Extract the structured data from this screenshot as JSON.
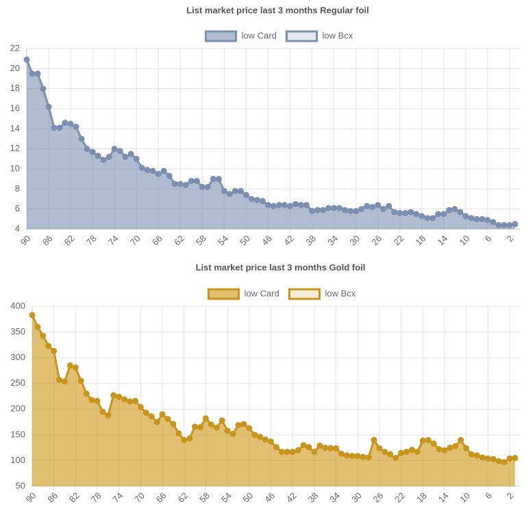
{
  "chart_data": [
    {
      "type": "line",
      "title": "List market price last 3 months Regular foil",
      "fill": true,
      "grid": true,
      "x": [
        90,
        89,
        88,
        87,
        86,
        85,
        84,
        83,
        82,
        81,
        80,
        79,
        78,
        77,
        76,
        75,
        74,
        73,
        72,
        71,
        70,
        69,
        68,
        67,
        66,
        65,
        64,
        63,
        62,
        61,
        60,
        59,
        58,
        57,
        56,
        55,
        54,
        53,
        52,
        51,
        50,
        49,
        48,
        47,
        46,
        45,
        44,
        43,
        42,
        41,
        40,
        39,
        38,
        37,
        36,
        35,
        34,
        33,
        32,
        31,
        30,
        29,
        28,
        27,
        26,
        25,
        24,
        23,
        22,
        21,
        20,
        19,
        18,
        17,
        16,
        15,
        14,
        13,
        12,
        11,
        10,
        9,
        8,
        7,
        6,
        5,
        4,
        3,
        2,
        1
      ],
      "xlim": [
        90,
        1
      ],
      "xticks": [
        90,
        86,
        82,
        78,
        74,
        70,
        66,
        62,
        58,
        54,
        50,
        46,
        42,
        38,
        34,
        30,
        26,
        22,
        18,
        14,
        10,
        6,
        2
      ],
      "ylim": [
        4,
        22
      ],
      "yticks": [
        4,
        6,
        8,
        10,
        12,
        14,
        16,
        18,
        20,
        22
      ],
      "series": [
        {
          "name": "low Card",
          "color": "#7b8fb0",
          "fill_color": "rgba(123,143,176,0.6)",
          "values": [
            20.9,
            19.5,
            19.5,
            18.0,
            16.2,
            14.1,
            14.1,
            14.6,
            14.5,
            14.2,
            13.0,
            12.0,
            11.7,
            11.3,
            10.9,
            11.2,
            12.0,
            11.8,
            11.2,
            11.5,
            11.0,
            10.1,
            9.9,
            9.8,
            9.5,
            9.8,
            9.3,
            8.5,
            8.5,
            8.4,
            8.8,
            8.8,
            8.2,
            8.2,
            9.0,
            9.0,
            7.8,
            7.5,
            7.8,
            7.8,
            7.4,
            7.0,
            6.9,
            6.8,
            6.4,
            6.3,
            6.4,
            6.4,
            6.3,
            6.5,
            6.4,
            6.4,
            5.8,
            5.9,
            5.9,
            6.1,
            6.1,
            6.1,
            5.9,
            5.8,
            5.8,
            6.0,
            6.3,
            6.2,
            6.4,
            6.0,
            6.3,
            5.7,
            5.6,
            5.6,
            5.7,
            5.5,
            5.3,
            5.1,
            5.1,
            5.5,
            5.5,
            5.9,
            6.0,
            5.7,
            5.3,
            5.1,
            5.0,
            5.0,
            4.9,
            4.7,
            4.4,
            4.4,
            4.4,
            4.5
          ]
        },
        {
          "name": "low Bcx",
          "color": "#7b8fb0",
          "fill_color": "rgba(123,143,176,0.2)",
          "values": [
            null,
            null,
            null,
            null,
            null,
            null,
            null,
            null,
            null,
            null,
            null,
            null,
            null,
            null,
            null,
            null,
            null,
            null,
            null,
            null,
            null,
            null,
            null,
            null,
            null,
            null,
            null,
            null,
            null,
            null,
            null,
            null,
            null,
            null,
            null,
            null,
            null,
            null,
            null,
            null,
            null,
            null,
            null,
            null,
            null,
            null,
            null,
            null,
            null,
            null,
            null,
            null,
            null,
            null,
            null,
            null,
            null,
            null,
            null,
            null,
            null,
            null,
            null,
            null,
            null,
            null,
            null,
            null,
            null,
            null,
            null,
            null,
            null,
            null,
            null,
            null,
            null,
            null,
            null,
            null,
            null,
            null,
            null,
            null,
            null,
            null,
            null,
            null,
            null,
            null
          ]
        }
      ]
    },
    {
      "type": "line",
      "title": "List market price last 3 months Gold foil",
      "fill": true,
      "grid": true,
      "x": [
        90,
        89,
        88,
        87,
        86,
        85,
        84,
        83,
        82,
        81,
        80,
        79,
        78,
        77,
        76,
        75,
        74,
        73,
        72,
        71,
        70,
        69,
        68,
        67,
        66,
        65,
        64,
        63,
        62,
        61,
        60,
        59,
        58,
        57,
        56,
        55,
        54,
        53,
        52,
        51,
        50,
        49,
        48,
        47,
        46,
        45,
        44,
        43,
        42,
        41,
        40,
        39,
        38,
        37,
        36,
        35,
        34,
        33,
        32,
        31,
        30,
        29,
        28,
        27,
        26,
        25,
        24,
        23,
        22,
        21,
        20,
        19,
        18,
        17,
        16,
        15,
        14,
        13,
        12,
        11,
        10,
        9,
        8,
        7,
        6,
        5,
        4,
        3,
        2,
        1
      ],
      "xlim": [
        90,
        1
      ],
      "xticks": [
        90,
        86,
        82,
        78,
        74,
        70,
        66,
        62,
        58,
        54,
        50,
        46,
        42,
        38,
        34,
        30,
        26,
        22,
        18,
        14,
        10,
        6,
        2
      ],
      "ylim": [
        50,
        400
      ],
      "yticks": [
        50,
        100,
        150,
        200,
        250,
        300,
        350,
        400
      ],
      "series": [
        {
          "name": "low Card",
          "color": "#c8941c",
          "fill_color": "rgba(212,166,58,0.72)",
          "values": [
            383,
            360,
            343,
            323,
            313,
            257,
            254,
            285,
            281,
            255,
            230,
            218,
            216,
            195,
            188,
            227,
            224,
            219,
            215,
            216,
            204,
            193,
            186,
            175,
            190,
            181,
            171,
            153,
            140,
            143,
            166,
            165,
            182,
            170,
            164,
            178,
            158,
            152,
            169,
            171,
            163,
            150,
            146,
            141,
            137,
            126,
            117,
            117,
            117,
            120,
            130,
            126,
            117,
            129,
            125,
            124,
            124,
            113,
            110,
            109,
            109,
            107,
            106,
            140,
            124,
            117,
            112,
            105,
            115,
            117,
            121,
            117,
            139,
            140,
            133,
            122,
            120,
            125,
            128,
            140,
            124,
            112,
            110,
            106,
            104,
            103,
            99,
            97,
            104,
            105
          ]
        },
        {
          "name": "low Bcx",
          "color": "#c8941c",
          "fill_color": "rgba(212,166,58,0.2)",
          "values": [
            null,
            null,
            null,
            null,
            null,
            null,
            null,
            null,
            null,
            null,
            null,
            null,
            null,
            null,
            null,
            null,
            null,
            null,
            null,
            null,
            null,
            null,
            null,
            null,
            null,
            null,
            null,
            null,
            null,
            null,
            null,
            null,
            null,
            null,
            null,
            null,
            null,
            null,
            null,
            null,
            null,
            null,
            null,
            null,
            null,
            null,
            null,
            null,
            null,
            null,
            null,
            null,
            null,
            null,
            null,
            null,
            null,
            null,
            null,
            null,
            null,
            null,
            null,
            null,
            null,
            null,
            null,
            null,
            null,
            null,
            null,
            null,
            null,
            null,
            null,
            null,
            null,
            null,
            null,
            null,
            null,
            null,
            null,
            null,
            null,
            null,
            null,
            null,
            null,
            null
          ]
        }
      ]
    }
  ]
}
